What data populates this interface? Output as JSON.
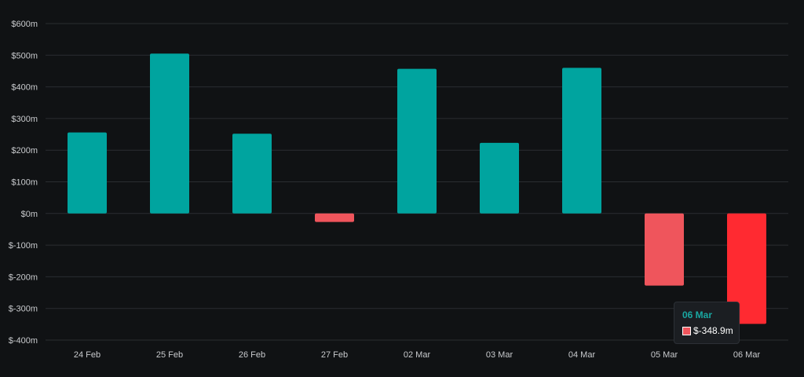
{
  "chart_data": {
    "type": "bar",
    "categories": [
      "24 Feb",
      "25 Feb",
      "26 Feb",
      "27 Feb",
      "02 Mar",
      "03 Mar",
      "04 Mar",
      "05 Mar",
      "06 Mar"
    ],
    "values": [
      256,
      505,
      252,
      -27,
      457,
      223,
      460,
      -228,
      -348.9
    ],
    "title": "",
    "xlabel": "",
    "ylabel": "",
    "ylim": [
      -400,
      600
    ],
    "yticks": [
      600,
      500,
      400,
      300,
      200,
      100,
      0,
      -100,
      -200,
      -300,
      -400
    ],
    "ytick_labels": [
      "$600m",
      "$500m",
      "$400m",
      "$300m",
      "$200m",
      "$100m",
      "$0m",
      "$-100m",
      "$-200m",
      "$-300m",
      "$-400m"
    ],
    "grid": true,
    "legend": "none",
    "colors": {
      "positive": "#00a49f",
      "negative": "#ef555c",
      "negative_highlight": "#ff2a31",
      "gridline": "#2a2d31",
      "tick_text": "#c8cacd",
      "background": "#101214"
    }
  },
  "tooltip": {
    "date": "06 Mar",
    "value": "$-348.9m",
    "swatch_color": "#ef555c",
    "accent_color": "#19a7a1"
  }
}
